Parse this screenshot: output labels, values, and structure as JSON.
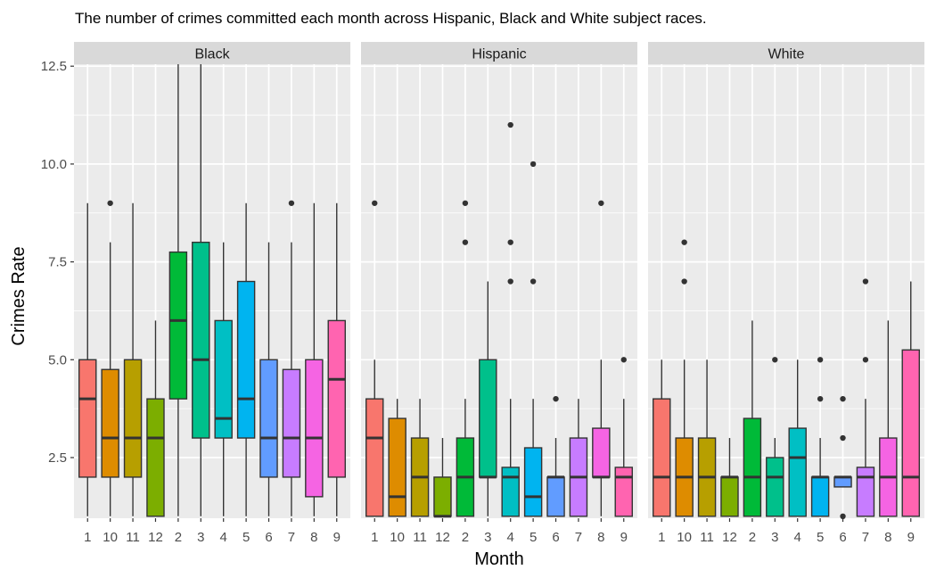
{
  "chart_data": {
    "type": "boxplot",
    "title": "The number of crimes committed each month across Hispanic, Black and White subject races.",
    "xlabel": "Month",
    "ylabel": "Crimes Rate",
    "ylim": [
      0.95,
      12.55
    ],
    "yticks": [
      2.5,
      5.0,
      7.5,
      10.0,
      12.5
    ],
    "ytick_labels": [
      "2.5",
      "5.0",
      "7.5",
      "10.0",
      "12.5"
    ],
    "categories": [
      "1",
      "10",
      "11",
      "12",
      "2",
      "3",
      "4",
      "5",
      "6",
      "7",
      "8",
      "9"
    ],
    "colors": [
      "#F8766D",
      "#DE8C00",
      "#B79F00",
      "#7CAE00",
      "#00BA38",
      "#00C08B",
      "#00BFC4",
      "#00B4F0",
      "#619CFF",
      "#C77CFF",
      "#F564E3",
      "#FF64B0"
    ],
    "background": "#EBEBEB",
    "strip_color": "#D9D9D9",
    "panels": [
      {
        "name": "Black",
        "boxes": [
          {
            "min": 1,
            "q1": 2,
            "median": 4,
            "q3": 5,
            "max": 9,
            "outliers": []
          },
          {
            "min": 1,
            "q1": 2,
            "median": 3,
            "q3": 4.75,
            "max": 8,
            "outliers": [
              9
            ]
          },
          {
            "min": 1,
            "q1": 2,
            "median": 3,
            "q3": 5,
            "max": 9,
            "outliers": []
          },
          {
            "min": 1,
            "q1": 1,
            "median": 3,
            "q3": 4,
            "max": 6,
            "outliers": []
          },
          {
            "min": 1,
            "q1": 4,
            "median": 6,
            "q3": 7.75,
            "max": 12.55,
            "outliers": []
          },
          {
            "min": 1,
            "q1": 3,
            "median": 5,
            "q3": 8,
            "max": 12.55,
            "outliers": []
          },
          {
            "min": 1,
            "q1": 3,
            "median": 3.5,
            "q3": 6,
            "max": 8,
            "outliers": []
          },
          {
            "min": 1,
            "q1": 3,
            "median": 4,
            "q3": 7,
            "max": 9,
            "outliers": []
          },
          {
            "min": 1,
            "q1": 2,
            "median": 3,
            "q3": 5,
            "max": 8,
            "outliers": []
          },
          {
            "min": 1,
            "q1": 2,
            "median": 3,
            "q3": 4.75,
            "max": 8,
            "outliers": [
              9
            ]
          },
          {
            "min": 1,
            "q1": 1.5,
            "median": 3,
            "q3": 5,
            "max": 9,
            "outliers": []
          },
          {
            "min": 1,
            "q1": 2,
            "median": 4.5,
            "q3": 6,
            "max": 9,
            "outliers": []
          }
        ]
      },
      {
        "name": "Hispanic",
        "boxes": [
          {
            "min": 1,
            "q1": 1,
            "median": 3,
            "q3": 4,
            "max": 5,
            "outliers": [
              9
            ]
          },
          {
            "min": 1,
            "q1": 1,
            "median": 1.5,
            "q3": 3.5,
            "max": 4,
            "outliers": []
          },
          {
            "min": 1,
            "q1": 1,
            "median": 2,
            "q3": 3,
            "max": 4,
            "outliers": []
          },
          {
            "min": 1,
            "q1": 1,
            "median": 1,
            "q3": 2,
            "max": 3,
            "outliers": []
          },
          {
            "min": 1,
            "q1": 1,
            "median": 2,
            "q3": 3,
            "max": 4,
            "outliers": [
              8,
              9
            ]
          },
          {
            "min": 1,
            "q1": 2,
            "median": 2,
            "q3": 5,
            "max": 7,
            "outliers": []
          },
          {
            "min": 1,
            "q1": 1,
            "median": 2,
            "q3": 2.25,
            "max": 4,
            "outliers": [
              7,
              8,
              11
            ]
          },
          {
            "min": 1,
            "q1": 1,
            "median": 1.5,
            "q3": 2.75,
            "max": 4,
            "outliers": [
              7,
              10
            ]
          },
          {
            "min": 1,
            "q1": 1,
            "median": 2,
            "q3": 2,
            "max": 3,
            "outliers": [
              4
            ]
          },
          {
            "min": 1,
            "q1": 1,
            "median": 2,
            "q3": 3,
            "max": 4,
            "outliers": []
          },
          {
            "min": 1,
            "q1": 2,
            "median": 2,
            "q3": 3.25,
            "max": 5,
            "outliers": [
              9
            ]
          },
          {
            "min": 1,
            "q1": 1,
            "median": 2,
            "q3": 2.25,
            "max": 4,
            "outliers": [
              5
            ]
          }
        ]
      },
      {
        "name": "White",
        "boxes": [
          {
            "min": 1,
            "q1": 1,
            "median": 2,
            "q3": 4,
            "max": 5,
            "outliers": []
          },
          {
            "min": 1,
            "q1": 1,
            "median": 2,
            "q3": 3,
            "max": 5,
            "outliers": [
              7,
              8
            ]
          },
          {
            "min": 1,
            "q1": 1,
            "median": 2,
            "q3": 3,
            "max": 5,
            "outliers": []
          },
          {
            "min": 1,
            "q1": 1,
            "median": 2,
            "q3": 2,
            "max": 3,
            "outliers": []
          },
          {
            "min": 1,
            "q1": 1,
            "median": 2,
            "q3": 3.5,
            "max": 6,
            "outliers": []
          },
          {
            "min": 1,
            "q1": 1,
            "median": 2,
            "q3": 2.5,
            "max": 3,
            "outliers": [
              5
            ]
          },
          {
            "min": 1,
            "q1": 1,
            "median": 2.5,
            "q3": 3.25,
            "max": 5,
            "outliers": []
          },
          {
            "min": 1,
            "q1": 1,
            "median": 2,
            "q3": 2,
            "max": 3,
            "outliers": [
              4,
              5
            ]
          },
          {
            "min": 1.75,
            "q1": 1.75,
            "median": 2,
            "q3": 2,
            "max": 2,
            "outliers": [
              1,
              3,
              4
            ]
          },
          {
            "min": 1,
            "q1": 1,
            "median": 2,
            "q3": 2.25,
            "max": 4,
            "outliers": [
              5,
              7
            ]
          },
          {
            "min": 1,
            "q1": 1,
            "median": 2,
            "q3": 3,
            "max": 6,
            "outliers": []
          },
          {
            "min": 1,
            "q1": 1,
            "median": 2,
            "q3": 5.25,
            "max": 7,
            "outliers": []
          }
        ]
      }
    ]
  }
}
